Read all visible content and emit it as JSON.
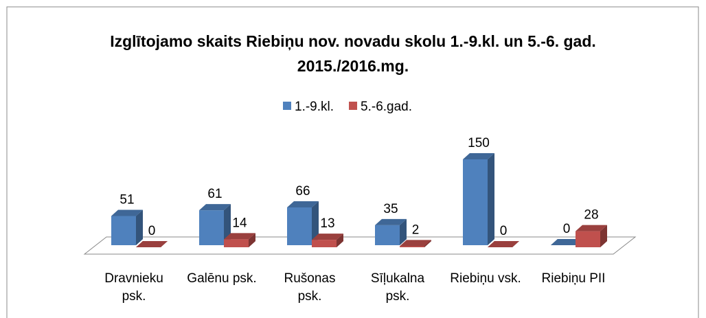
{
  "chart_data": {
    "type": "bar3d",
    "title": "Izglītojamo skaits Riebiņu nov. novadu skolu 1.-9.kl. un 5.-6. gad. 2015./2016.mg.",
    "categories": [
      "Dravnieku psk.",
      "Galēnu psk.",
      "Rušonas psk.",
      "Sīļukalna psk.",
      "Riebiņu vsk.",
      "Riebiņu PII"
    ],
    "series": [
      {
        "name": "1.-9.kl.",
        "color": "#4f81bd",
        "values": [
          51,
          61,
          66,
          35,
          150,
          0
        ]
      },
      {
        "name": "5.-6.gad.",
        "color": "#c0504d",
        "values": [
          0,
          14,
          13,
          2,
          0,
          28
        ]
      }
    ],
    "legend": "top"
  }
}
